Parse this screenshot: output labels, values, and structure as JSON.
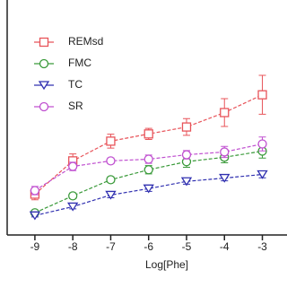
{
  "chart_data": {
    "type": "line",
    "xlabel": "Log[Phe]",
    "x": [
      -9,
      -8,
      -7,
      -6,
      -5,
      -4,
      -3
    ],
    "xlim": [
      -9.4,
      -2.35
    ],
    "xticks": [
      -9,
      -8,
      -7,
      -6,
      -5,
      -4,
      -3
    ],
    "ylim": [
      -0.7,
      7.7
    ],
    "series": [
      {
        "name": "REMsd",
        "color": "#e8545a",
        "marker": "square",
        "values": [
          0.77,
          1.97,
          2.68,
          2.94,
          3.19,
          3.71,
          4.35
        ],
        "errors": [
          0.2,
          0.25,
          0.25,
          0.2,
          0.3,
          0.5,
          0.7
        ]
      },
      {
        "name": "FMC",
        "color": "#3a9a3a",
        "marker": "circle",
        "values": [
          0.1,
          0.71,
          1.29,
          1.65,
          1.94,
          2.1,
          2.32
        ],
        "errors": [
          0.08,
          0.1,
          0.1,
          0.15,
          0.2,
          0.2,
          0.25
        ]
      },
      {
        "name": "TC",
        "color": "#3030b0",
        "marker": "triangle-down",
        "values": [
          0,
          0.32,
          0.74,
          0.97,
          1.23,
          1.35,
          1.48
        ],
        "errors": [
          0.05,
          0.08,
          0.1,
          0.1,
          0.1,
          0.1,
          0.12
        ]
      },
      {
        "name": "SR",
        "color": "#c050d0",
        "marker": "circle",
        "values": [
          0.9,
          1.77,
          1.97,
          2.03,
          2.19,
          2.29,
          2.58
        ],
        "errors": [
          0.15,
          0.15,
          0.1,
          0.15,
          0.15,
          0.2,
          0.25
        ]
      }
    ]
  }
}
